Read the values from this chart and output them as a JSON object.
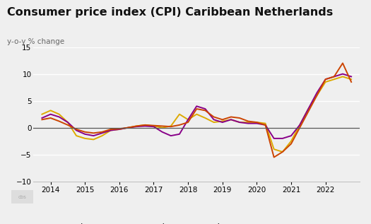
{
  "title": "Consumer price index (CPI) Caribbean Netherlands",
  "ylabel": "y-o-y % change",
  "background_color": "#efefef",
  "plot_bg_color": "#efefef",
  "ylim": [
    -10,
    15
  ],
  "yticks": [
    -10,
    -5,
    0,
    5,
    10,
    15
  ],
  "title_fontsize": 11.5,
  "ylabel_fontsize": 7.5,
  "tick_fontsize": 7.5,
  "legend_fontsize": 8.5,
  "colors": {
    "Bonaire": "#cc4400",
    "St Eustatius": "#ddaa00",
    "Saba": "#880088"
  },
  "bonaire_x": [
    2013.75,
    2014.0,
    2014.25,
    2014.5,
    2014.75,
    2015.0,
    2015.25,
    2015.5,
    2015.75,
    2016.0,
    2016.25,
    2016.5,
    2016.75,
    2017.0,
    2017.25,
    2017.5,
    2017.75,
    2018.0,
    2018.25,
    2018.5,
    2018.75,
    2019.0,
    2019.25,
    2019.5,
    2019.75,
    2020.0,
    2020.25,
    2020.5,
    2020.75,
    2021.0,
    2021.25,
    2021.5,
    2021.75,
    2022.0,
    2022.25,
    2022.5,
    2022.75
  ],
  "bonaire_y": [
    1.5,
    1.8,
    1.2,
    0.5,
    -0.3,
    -0.8,
    -1.0,
    -0.8,
    -0.3,
    -0.2,
    0.0,
    0.3,
    0.5,
    0.4,
    0.3,
    0.2,
    0.5,
    1.0,
    3.5,
    3.2,
    2.0,
    1.5,
    2.0,
    1.8,
    1.2,
    1.0,
    0.5,
    -5.5,
    -4.5,
    -3.0,
    0.0,
    3.0,
    6.0,
    9.0,
    9.5,
    12.0,
    8.5
  ],
  "steustatius_x": [
    2013.75,
    2014.0,
    2014.25,
    2014.5,
    2014.75,
    2015.0,
    2015.25,
    2015.5,
    2015.75,
    2016.0,
    2016.25,
    2016.5,
    2016.75,
    2017.0,
    2017.25,
    2017.5,
    2017.75,
    2018.0,
    2018.25,
    2018.5,
    2018.75,
    2019.0,
    2019.25,
    2019.5,
    2019.75,
    2020.0,
    2020.25,
    2020.5,
    2020.75,
    2021.0,
    2021.25,
    2021.5,
    2021.75,
    2022.0,
    2022.25,
    2022.5,
    2022.75
  ],
  "steustatius_y": [
    2.5,
    3.2,
    2.5,
    1.0,
    -1.5,
    -2.0,
    -2.2,
    -1.5,
    -0.5,
    -0.3,
    0.0,
    0.3,
    0.5,
    0.3,
    0.0,
    0.3,
    2.5,
    1.5,
    2.5,
    1.8,
    1.0,
    1.2,
    1.5,
    1.0,
    1.0,
    1.0,
    0.8,
    -4.0,
    -4.5,
    -2.5,
    0.5,
    3.5,
    6.0,
    8.5,
    9.0,
    9.5,
    9.0
  ],
  "saba_x": [
    2013.75,
    2014.0,
    2014.25,
    2014.5,
    2014.75,
    2015.0,
    2015.25,
    2015.5,
    2015.75,
    2016.0,
    2016.25,
    2016.5,
    2016.75,
    2017.0,
    2017.25,
    2017.5,
    2017.75,
    2018.0,
    2018.25,
    2018.5,
    2018.75,
    2019.0,
    2019.25,
    2019.5,
    2019.75,
    2020.0,
    2020.25,
    2020.5,
    2020.75,
    2021.0,
    2021.25,
    2021.5,
    2021.75,
    2022.0,
    2022.25,
    2022.5,
    2022.75
  ],
  "saba_y": [
    1.8,
    2.5,
    2.0,
    1.0,
    -0.5,
    -1.2,
    -1.5,
    -1.0,
    -0.5,
    -0.3,
    0.0,
    0.2,
    0.3,
    0.2,
    -0.8,
    -1.5,
    -1.2,
    1.5,
    4.0,
    3.5,
    1.5,
    1.0,
    1.5,
    1.0,
    0.8,
    0.8,
    0.5,
    -2.0,
    -2.0,
    -1.5,
    0.5,
    3.5,
    6.5,
    9.0,
    9.5,
    10.0,
    9.5
  ]
}
